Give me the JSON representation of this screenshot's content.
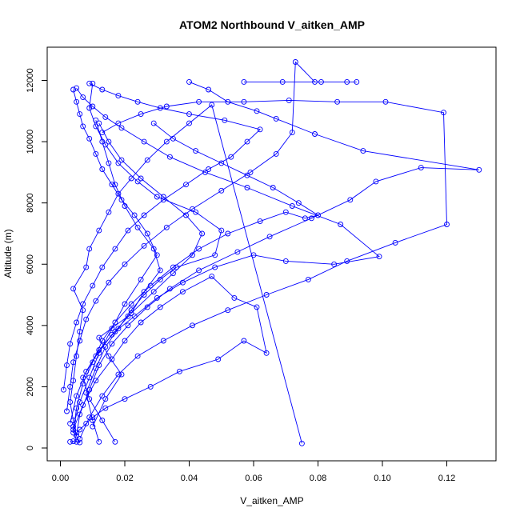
{
  "chart_data": {
    "type": "line",
    "title": "ATOM2 Northbound V_aitken_AMP",
    "xlabel": "V_aitken_AMP",
    "ylabel": "Altitude (m)",
    "xlim": [
      0.0,
      0.13
    ],
    "ylim": [
      0,
      12700
    ],
    "xticks": [
      "0.00",
      "0.02",
      "0.04",
      "0.06",
      "0.08",
      "0.10",
      "0.12"
    ],
    "yticks": [
      "0",
      "2000",
      "4000",
      "6000",
      "8000",
      "10000",
      "12000"
    ],
    "grid": false,
    "legend": "none",
    "series_color": "#0000ff",
    "marker": "open-circle",
    "series": [
      {
        "x": [
          0.003,
          0.004,
          0.006,
          0.005,
          0.004,
          0.003,
          0.004,
          0.005,
          0.006,
          0.007,
          0.004,
          0.008,
          0.009,
          0.012,
          0.015,
          0.018,
          0.022,
          0.027,
          0.033,
          0.04,
          0.047,
          0.075
        ],
        "y": [
          200,
          220,
          180,
          400,
          900,
          1500,
          2200,
          3000,
          3800,
          4500,
          5200,
          5900,
          6500,
          7100,
          7700,
          8300,
          8800,
          9400,
          10000,
          10600,
          11200,
          150
        ]
      },
      {
        "x": [
          0.012,
          0.01,
          0.008,
          0.011,
          0.014,
          0.018,
          0.022,
          0.026,
          0.031,
          0.036,
          0.048,
          0.05,
          0.042,
          0.03,
          0.024,
          0.018,
          0.014,
          0.011,
          0.009,
          0.01
        ],
        "y": [
          200,
          900,
          1800,
          2600,
          3300,
          3900,
          4500,
          5000,
          5500,
          5900,
          6300,
          7100,
          7700,
          8200,
          8700,
          9300,
          9900,
          10500,
          11100,
          11900
        ]
      },
      {
        "x": [
          0.005,
          0.006,
          0.009,
          0.012,
          0.016,
          0.021,
          0.027,
          0.034,
          0.043,
          0.055,
          0.065,
          0.078,
          0.09,
          0.098,
          0.112,
          0.13,
          0.094,
          0.079,
          0.067,
          0.061,
          0.052,
          0.046,
          0.04
        ],
        "y": [
          400,
          1100,
          1900,
          2700,
          3400,
          4000,
          4600,
          5200,
          5800,
          6400,
          6900,
          7500,
          8100,
          8700,
          9150,
          9080,
          9700,
          10250,
          10750,
          11000,
          11300,
          11700,
          11950
        ]
      },
      {
        "x": [
          0.004,
          0.007,
          0.011,
          0.016,
          0.02,
          0.025,
          0.031,
          0.038,
          0.047,
          0.054,
          0.061,
          0.064,
          0.057,
          0.049,
          0.037,
          0.028,
          0.02,
          0.014,
          0.01,
          0.008,
          0.006,
          0.005
        ],
        "y": [
          600,
          1400,
          2200,
          2900,
          3500,
          4100,
          4600,
          5100,
          5600,
          4900,
          4600,
          3100,
          3500,
          2900,
          2500,
          2000,
          1600,
          1300,
          1000,
          800,
          600,
          500
        ]
      },
      {
        "x": [
          0.003,
          0.005,
          0.008,
          0.012,
          0.017,
          0.023,
          0.03,
          0.038,
          0.048,
          0.06,
          0.07,
          0.085,
          0.099,
          0.087,
          0.072,
          0.058,
          0.045,
          0.034,
          0.026,
          0.019,
          0.014,
          0.01,
          0.007,
          0.005
        ],
        "y": [
          800,
          1700,
          2500,
          3200,
          3800,
          4300,
          4900,
          5400,
          5900,
          6300,
          6100,
          6000,
          6250,
          7300,
          7900,
          8500,
          9000,
          9500,
          10000,
          10450,
          10800,
          11150,
          11450,
          11750
        ]
      },
      {
        "x": [
          0.006,
          0.009,
          0.013,
          0.018,
          0.024,
          0.032,
          0.041,
          0.052,
          0.064,
          0.077,
          0.089,
          0.104,
          0.12,
          0.119,
          0.101,
          0.086,
          0.071,
          0.057,
          0.043,
          0.033,
          0.025,
          0.018,
          0.013
        ],
        "y": [
          300,
          1000,
          1700,
          2400,
          3000,
          3500,
          4000,
          4500,
          5000,
          5500,
          6100,
          6700,
          7300,
          10950,
          11300,
          11300,
          11350,
          11300,
          11300,
          11150,
          10900,
          10600,
          10300
        ]
      },
      {
        "x": [
          0.002,
          0.003,
          0.004,
          0.006,
          0.008,
          0.011,
          0.015,
          0.02,
          0.026,
          0.033,
          0.041,
          0.05,
          0.059,
          0.067,
          0.072,
          0.073,
          0.079,
          0.089,
          0.092,
          0.081,
          0.069,
          0.057
        ],
        "y": [
          1200,
          2000,
          2800,
          3500,
          4200,
          4800,
          5400,
          6000,
          6600,
          7200,
          7800,
          8400,
          9000,
          9600,
          10300,
          12600,
          11950,
          11950,
          11950,
          11950,
          11950,
          11950
        ]
      },
      {
        "x": [
          0.004,
          0.005,
          0.007,
          0.01,
          0.013,
          0.017,
          0.022,
          0.028,
          0.035,
          0.043,
          0.052,
          0.062,
          0.07,
          0.076,
          0.08,
          0.074,
          0.066,
          0.058,
          0.05,
          0.042,
          0.035,
          0.029
        ],
        "y": [
          500,
          1300,
          2100,
          2800,
          3500,
          4100,
          4700,
          5300,
          5900,
          6500,
          7000,
          7400,
          7700,
          7500,
          7600,
          8000,
          8500,
          8900,
          9300,
          9700,
          10100,
          10600
        ]
      },
      {
        "x": [
          0.001,
          0.002,
          0.003,
          0.005,
          0.007,
          0.01,
          0.013,
          0.017,
          0.021,
          0.026,
          0.032,
          0.039,
          0.046,
          0.053,
          0.058,
          0.062,
          0.051,
          0.04,
          0.031,
          0.024,
          0.018,
          0.013,
          0.009
        ],
        "y": [
          1900,
          2700,
          3400,
          4100,
          4700,
          5300,
          5900,
          6500,
          7100,
          7600,
          8100,
          8600,
          9100,
          9500,
          10000,
          10400,
          10700,
          10900,
          11100,
          11300,
          11500,
          11700,
          11900
        ]
      },
      {
        "x": [
          0.005,
          0.004,
          0.006,
          0.009,
          0.012,
          0.016,
          0.02,
          0.025,
          0.03,
          0.027,
          0.023,
          0.019,
          0.016,
          0.013,
          0.011,
          0.009,
          0.007,
          0.006,
          0.005,
          0.004
        ],
        "y": [
          200,
          700,
          1500,
          2300,
          3100,
          3900,
          4700,
          5500,
          6300,
          7000,
          7600,
          8100,
          8600,
          9100,
          9600,
          10100,
          10500,
          10900,
          11300,
          11700
        ]
      },
      {
        "x": [
          0.01,
          0.014,
          0.019,
          0.015,
          0.012,
          0.021,
          0.029,
          0.035,
          0.041,
          0.044,
          0.039,
          0.032,
          0.025,
          0.019,
          0.015,
          0.012
        ],
        "y": [
          700,
          1600,
          2400,
          3000,
          3600,
          4300,
          5100,
          5700,
          6300,
          7000,
          7600,
          8200,
          8800,
          9400,
          10000,
          10600
        ]
      },
      {
        "x": [
          0.017,
          0.013,
          0.009,
          0.007,
          0.011,
          0.016,
          0.022,
          0.026,
          0.031,
          0.029,
          0.024,
          0.02,
          0.017,
          0.015,
          0.013,
          0.011
        ],
        "y": [
          200,
          900,
          1600,
          2300,
          3000,
          3700,
          4400,
          5100,
          5800,
          6500,
          7200,
          7900,
          8600,
          9300,
          10000,
          10700
        ]
      }
    ]
  }
}
